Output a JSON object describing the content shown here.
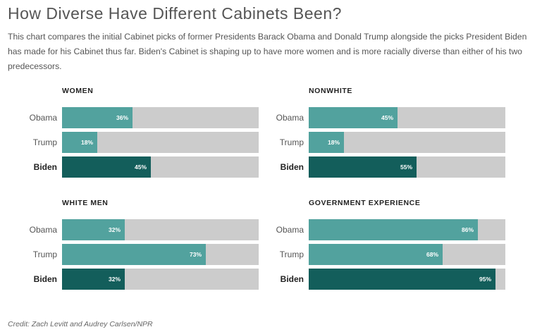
{
  "header": {
    "title": "How Diverse Have Different Cabinets Been?",
    "subtitle": "This chart compares the initial Cabinet picks of former Presidents Barack Obama and Donald Trump alongside the picks President Biden has made for his Cabinet thus far. Biden's Cabinet is shaping up to have more women and is more racially diverse than either of his two predecessors."
  },
  "footer": {
    "credit": "Credit: Zach Levitt and Audrey Carlsen/NPR"
  },
  "colors": {
    "bar": "#52a29e",
    "highlight": "#135e5b",
    "track": "#cccccc"
  },
  "chart_data": [
    {
      "type": "bar",
      "title": "WOMEN",
      "categories": [
        "Obama",
        "Trump",
        "Biden"
      ],
      "values": [
        36,
        18,
        45
      ],
      "labels": [
        "36%",
        "18%",
        "45%"
      ],
      "highlight": "Biden",
      "xlim": [
        0,
        100
      ]
    },
    {
      "type": "bar",
      "title": "NONWHITE",
      "categories": [
        "Obama",
        "Trump",
        "Biden"
      ],
      "values": [
        45,
        18,
        55
      ],
      "labels": [
        "45%",
        "18%",
        "55%"
      ],
      "highlight": "Biden",
      "xlim": [
        0,
        100
      ]
    },
    {
      "type": "bar",
      "title": "WHITE MEN",
      "categories": [
        "Obama",
        "Trump",
        "Biden"
      ],
      "values": [
        32,
        73,
        32
      ],
      "labels": [
        "32%",
        "73%",
        "32%"
      ],
      "highlight": "Biden",
      "xlim": [
        0,
        100
      ]
    },
    {
      "type": "bar",
      "title": "GOVERNMENT EXPERIENCE",
      "categories": [
        "Obama",
        "Trump",
        "Biden"
      ],
      "values": [
        86,
        68,
        95
      ],
      "labels": [
        "86%",
        "68%",
        "95%"
      ],
      "highlight": "Biden",
      "xlim": [
        0,
        100
      ]
    }
  ]
}
